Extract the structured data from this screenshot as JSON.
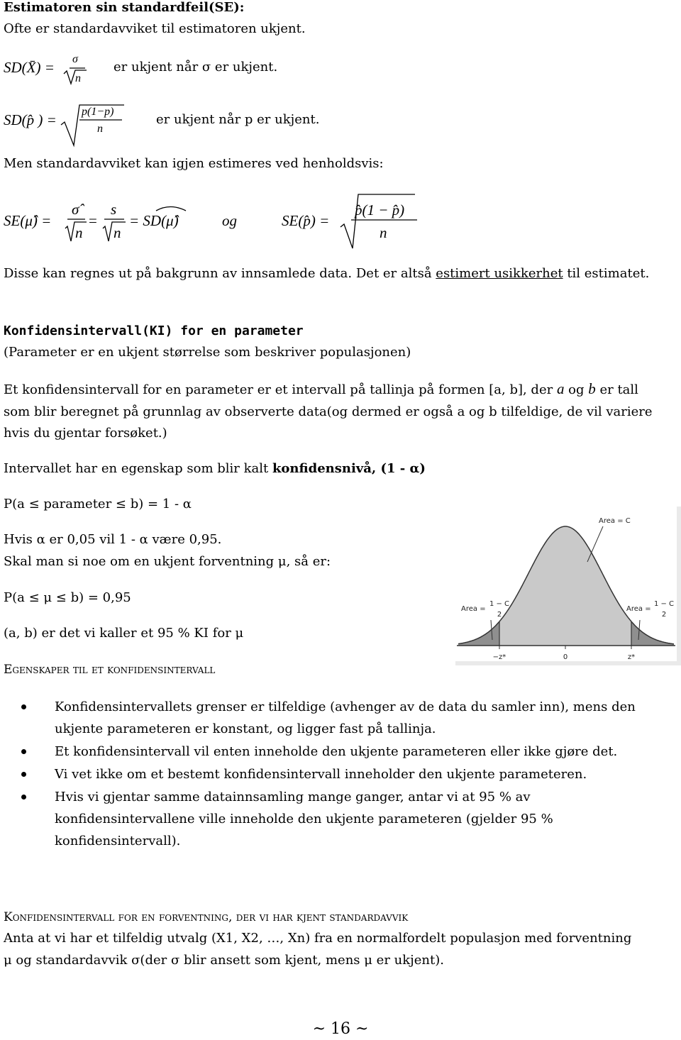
{
  "section1": {
    "title": "Estimatoren sin standardfeil(SE):",
    "intro": "Ofte er standardavviket til estimatoren ukjent."
  },
  "formula_sd_mean": {
    "lhs": "SD(X̄) =",
    "numerator": "σ",
    "denominator": "n",
    "note": "er ukjent når σ er ukjent."
  },
  "formula_sd_prop": {
    "lhs": "SD(p̂ ) =",
    "numerator": "p(1−p)",
    "denominator": "n",
    "note": "er ukjent når p er ukjent."
  },
  "estimate_intro": "Men standardavviket kan igjen estimeres ved henholdsvis:",
  "formula_se": {
    "mean_lhs": "SE(μ̂) =",
    "sigma_hat": "σ̂",
    "n1": "n",
    "equals": "=",
    "s": "s",
    "n2": "n",
    "sd_hat": "= SD(μ̂)",
    "og": "og",
    "prop_lhs": "SE(p̂) =",
    "prop_numerator": "p̂(1 − p̂)",
    "prop_denominator": "n"
  },
  "estimated_note": {
    "text": "Disse kan regnes ut på bakgrunn av innsamlede data. Det er altså ",
    "emphasis": "estimert usikkerhet",
    "end": " til estimatet."
  },
  "section2": {
    "title": "Konfidensintervall(KI) for en parameter",
    "subtitle": "(Parameter er en ukjent størrelse som beskriver populasjonen)",
    "definition": [
      "Et konfidensintervall for en parameter er et intervall på tallinja på formen [a, b], der ",
      "a",
      " og ",
      "b",
      " er tall som blir beregnet på grunnlag av observerte data(og dermed er også a og b tilfeldige, de vil variere hvis du gjentar forsøket.)"
    ],
    "property": {
      "text": "Intervallet har en egenskap som blir kalt ",
      "bold": "konfidensnivå, (1 - α)"
    },
    "probability": "P(a ≤ parameter ≤ b) = 1 - α",
    "example": "Hvis α er 0,05 vil 1 - α være 0,95.",
    "mean_intro": "Skal man si noe om en ukjent forventning μ, så er:",
    "mean_probability": "P(a ≤ μ ≤ b) = 0,95",
    "mean_ci": "(a, b) er det vi kaller et 95 % KI for μ"
  },
  "properties": {
    "heading": "Egenskaper til et konfidensintervall",
    "bullets": [
      "Konfidensintervallets grenser er tilfeldige (avhenger av de data du samler inn), mens den ukjente parameteren er konstant, og ligger fast på tallinja.",
      "Et konfidensintervall vil enten inneholde den ukjente parameteren eller ikke gjøre det.",
      "Vi vet ikke om et bestemt konfidensintervall inneholder den ukjente parameteren.",
      "Hvis vi gjentar samme datainnsamling mange ganger, antar vi at 95 % av konfidensintervallene ville inneholde den ukjente parameteren (gjelder 95 % konfidensintervall)."
    ]
  },
  "known_sd": {
    "heading": "Konfidensintervall for en forventning, der vi har kjent standardavvik",
    "text": "Anta at vi har et tilfeldig utvalg (X1, X2, …, Xn) fra en normalfordelt populasjon med forventning μ og standardavvik σ(der σ blir ansett som kjent, mens μ er ukjent)."
  },
  "figure": {
    "area_center": "Area = C",
    "area_tail_prefix": "Area =",
    "tail_numerator": "1 − C",
    "tail_denominator": "2",
    "ticks": [
      "−z*",
      "0",
      "z*"
    ]
  },
  "footer": "~ 16 ~"
}
